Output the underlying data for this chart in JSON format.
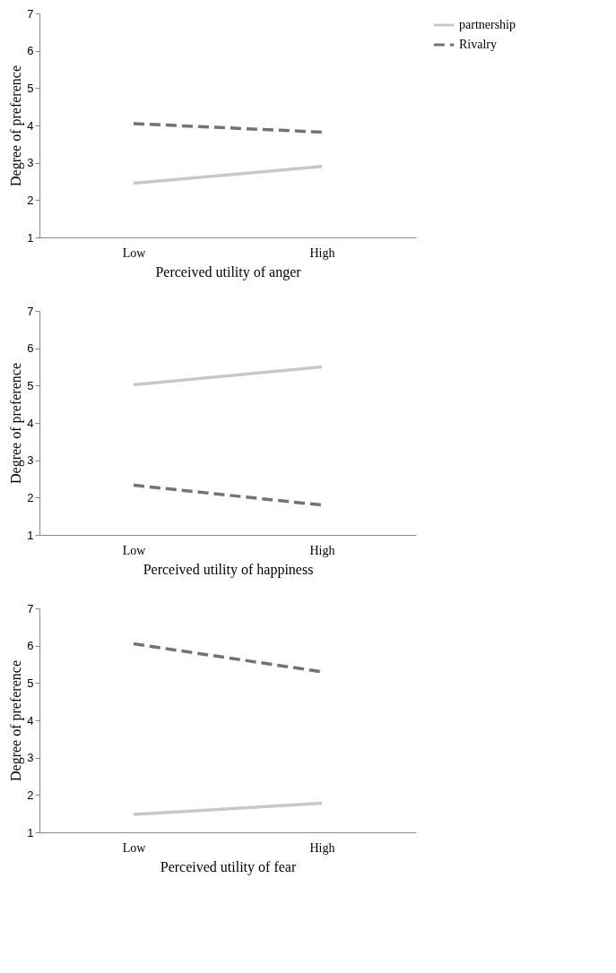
{
  "chart_data": [
    {
      "type": "line",
      "xlabel": "Perceived utility of anger",
      "ylabel": "Degree of preference",
      "categories": [
        "Low",
        "High"
      ],
      "ylim": [
        1,
        7
      ],
      "yticks": [
        1,
        2,
        3,
        4,
        5,
        6,
        7
      ],
      "grid": false,
      "legend": "right",
      "marker": "none",
      "series": [
        {
          "name": "partnership",
          "color": "#c8c8c8",
          "line_style": "solid",
          "values": [
            2.45,
            2.9
          ]
        },
        {
          "name": "Rivalry",
          "color": "#737373",
          "line_style": "dashed",
          "values": [
            4.05,
            3.82
          ]
        }
      ]
    },
    {
      "type": "line",
      "xlabel": "Perceived utility of happiness",
      "ylabel": "Degree of preference",
      "categories": [
        "Low",
        "High"
      ],
      "ylim": [
        1,
        7
      ],
      "yticks": [
        1,
        2,
        3,
        4,
        5,
        6,
        7
      ],
      "grid": false,
      "legend": "right",
      "marker": "none",
      "series": [
        {
          "name": "partnership",
          "color": "#c8c8c8",
          "line_style": "solid",
          "values": [
            5.02,
            5.5
          ]
        },
        {
          "name": "Rivalry",
          "color": "#737373",
          "line_style": "dashed",
          "values": [
            2.33,
            1.8
          ]
        }
      ]
    },
    {
      "type": "line",
      "xlabel": "Perceived utility of fear",
      "ylabel": "Degree of preference",
      "categories": [
        "Low",
        "High"
      ],
      "ylim": [
        1,
        7
      ],
      "yticks": [
        1,
        2,
        3,
        4,
        5,
        6,
        7
      ],
      "grid": false,
      "legend": "right",
      "marker": "none",
      "series": [
        {
          "name": "partnership",
          "color": "#c8c8c8",
          "line_style": "solid",
          "values": [
            1.48,
            1.78
          ]
        },
        {
          "name": "Rivalry",
          "color": "#737373",
          "line_style": "dashed",
          "values": [
            6.05,
            5.3
          ]
        }
      ]
    }
  ]
}
